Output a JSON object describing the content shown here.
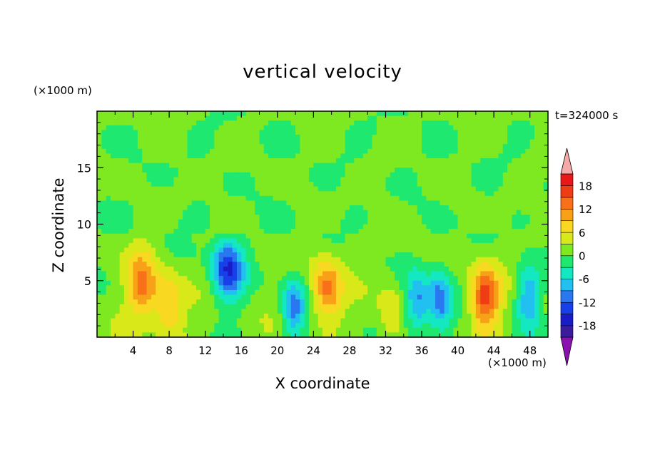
{
  "chart_data": {
    "type": "heatmap",
    "title": "vertical velocity",
    "xlabel": "X coordinate",
    "ylabel": "Z coordinate",
    "x_unit": "(×1000 m)",
    "y_unit": "(×1000 m)",
    "time_label": "t=324000 s",
    "xlim": [
      0,
      50
    ],
    "ylim": [
      0,
      20
    ],
    "x_ticks": [
      4,
      8,
      12,
      16,
      20,
      24,
      28,
      32,
      36,
      40,
      44,
      48
    ],
    "y_ticks": [
      5,
      10,
      15
    ],
    "colorbar": {
      "levels": [
        -21,
        -18,
        -15,
        -12,
        -9,
        -6,
        -3,
        0,
        3,
        6,
        9,
        12,
        15,
        18,
        21
      ],
      "tick_labels": [
        "18",
        "12",
        "6",
        "0",
        "-6",
        "-12",
        "-18"
      ],
      "tick_values": [
        18,
        12,
        6,
        0,
        -6,
        -12,
        -18
      ],
      "colors": [
        "#8b10b0",
        "#3c1c9e",
        "#1a1cc8",
        "#1840e8",
        "#2a78f0",
        "#22c0f0",
        "#14e8c0",
        "#1ee870",
        "#7ee820",
        "#d8e818",
        "#f8d820",
        "#f8a018",
        "#f87018",
        "#f03c14",
        "#e81818",
        "#f4a8a8"
      ],
      "extend": "both"
    },
    "features": [
      {
        "x": 5.0,
        "z": 4.5,
        "w": 0.75,
        "peak": 12
      },
      {
        "x": 8.0,
        "z": 2.6,
        "w": 0.75,
        "peak": 9
      },
      {
        "x": 14.5,
        "z": 6.0,
        "w": 0.8,
        "peak": -16
      },
      {
        "x": 21.8,
        "z": 2.6,
        "w": 0.6,
        "peak": -11
      },
      {
        "x": 25.5,
        "z": 4.2,
        "w": 0.75,
        "peak": 12
      },
      {
        "x": 32.5,
        "z": 2.0,
        "w": 0.6,
        "peak": 5
      },
      {
        "x": 35.5,
        "z": 3.0,
        "w": 0.6,
        "peak": -11
      },
      {
        "x": 38.0,
        "z": 3.2,
        "w": 0.6,
        "peak": -12
      },
      {
        "x": 43.0,
        "z": 3.5,
        "w": 0.7,
        "peak": 16
      },
      {
        "x": 47.8,
        "z": 3.6,
        "w": 0.6,
        "peak": -10
      }
    ]
  }
}
